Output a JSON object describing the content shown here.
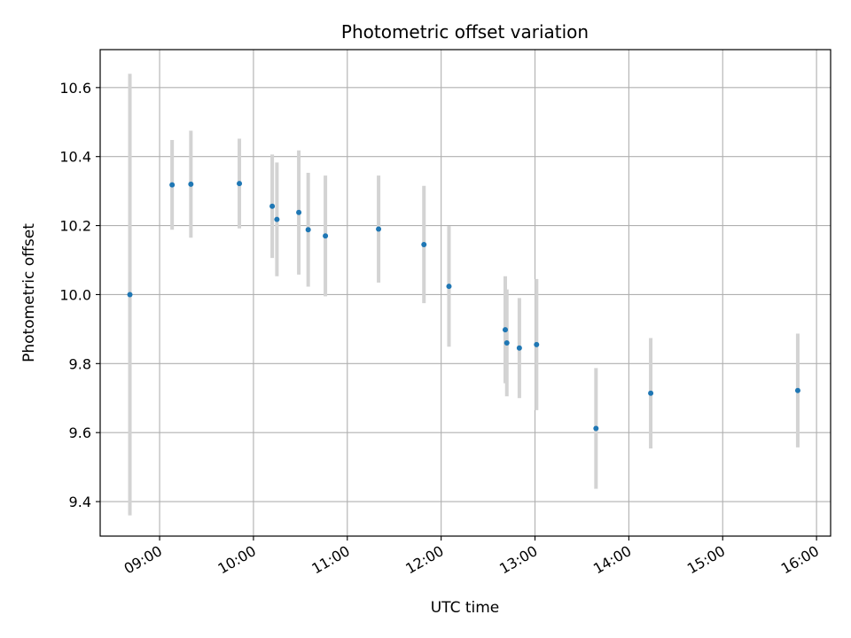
{
  "chart_data": {
    "type": "scatter",
    "title": "Photometric offset variation",
    "xlabel": "UTC time",
    "ylabel": "Photometric offset",
    "xlim": [
      "08:22",
      "16:09"
    ],
    "ylim": [
      9.3,
      10.71
    ],
    "x_ticks": [
      "09:00",
      "10:00",
      "11:00",
      "12:00",
      "13:00",
      "14:00",
      "15:00",
      "16:00"
    ],
    "y_ticks": [
      9.4,
      9.6,
      9.8,
      10.0,
      10.2,
      10.4,
      10.6
    ],
    "grid": true,
    "legend": "none",
    "colors": {
      "point": "#1f77b4",
      "errorbar": "#d3d3d3",
      "grid": "#b0b0b0"
    },
    "points": [
      {
        "time": "08:41",
        "y": 10.0,
        "err": 0.64
      },
      {
        "time": "09:08",
        "y": 10.318,
        "err": 0.13
      },
      {
        "time": "09:20",
        "y": 10.32,
        "err": 0.155
      },
      {
        "time": "09:51",
        "y": 10.322,
        "err": 0.13
      },
      {
        "time": "10:12",
        "y": 10.256,
        "err": 0.15
      },
      {
        "time": "10:15",
        "y": 10.218,
        "err": 0.165
      },
      {
        "time": "10:29",
        "y": 10.238,
        "err": 0.18
      },
      {
        "time": "10:35",
        "y": 10.188,
        "err": 0.165
      },
      {
        "time": "10:46",
        "y": 10.17,
        "err": 0.175
      },
      {
        "time": "11:20",
        "y": 10.19,
        "err": 0.155
      },
      {
        "time": "11:49",
        "y": 10.145,
        "err": 0.17
      },
      {
        "time": "12:05",
        "y": 10.024,
        "err": 0.175
      },
      {
        "time": "12:41",
        "y": 9.898,
        "err": 0.155
      },
      {
        "time": "12:42",
        "y": 9.86,
        "err": 0.155
      },
      {
        "time": "12:50",
        "y": 9.845,
        "err": 0.145
      },
      {
        "time": "13:01",
        "y": 9.855,
        "err": 0.19
      },
      {
        "time": "13:39",
        "y": 9.612,
        "err": 0.175
      },
      {
        "time": "14:14",
        "y": 9.714,
        "err": 0.16
      },
      {
        "time": "15:48",
        "y": 9.722,
        "err": 0.165
      }
    ]
  }
}
